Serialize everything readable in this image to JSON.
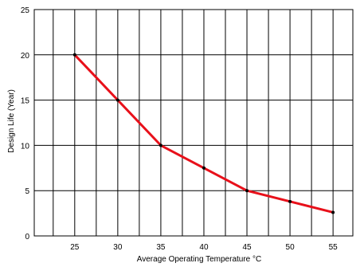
{
  "chart_data": {
    "type": "line",
    "xlabel": "Average Operating Temperature °C",
    "ylabel": "Design Life (Year)",
    "x_ticks": [
      "25",
      "30",
      "35",
      "40",
      "45",
      "50",
      "55"
    ],
    "y_ticks": [
      "0",
      "5",
      "10",
      "15",
      "20",
      "25"
    ],
    "xlim": [
      20.3,
      57.3
    ],
    "ylim": [
      0,
      25
    ],
    "grid": true,
    "line_color": "#e8101a",
    "x": [
      25,
      30,
      35,
      40,
      45,
      50,
      55
    ],
    "y": [
      20,
      15,
      10,
      7.5,
      5,
      3.8,
      2.6
    ]
  }
}
